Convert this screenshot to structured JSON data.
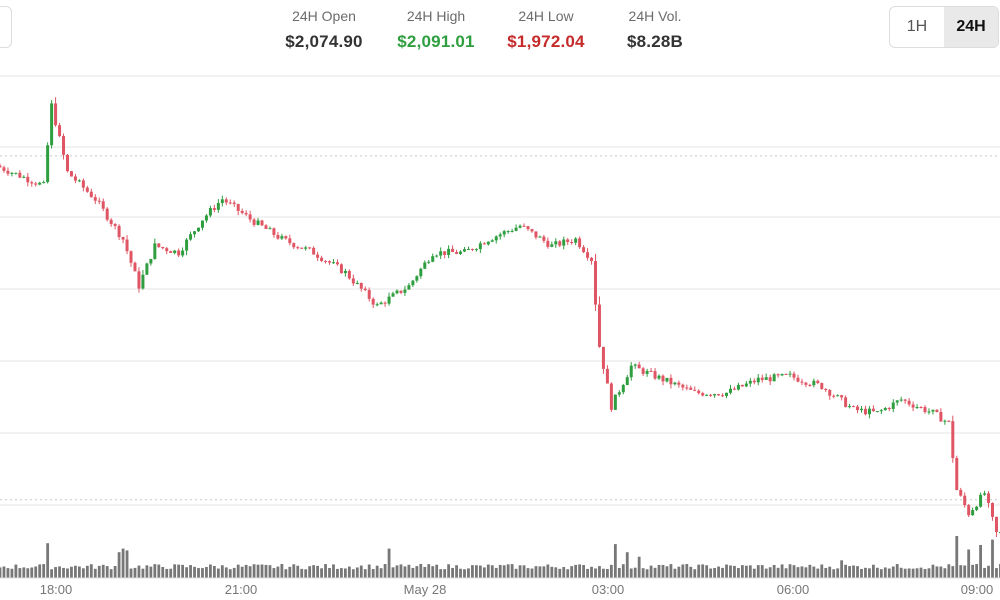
{
  "stats": [
    {
      "label": "24H Open",
      "value": "$2,074.90",
      "color": "#333333"
    },
    {
      "label": "24H High",
      "value": "$2,091.01",
      "color": "#2e9e3f"
    },
    {
      "label": "24H Low",
      "value": "$1,972.04",
      "color": "#c62b2b"
    },
    {
      "label": "24H Vol.",
      "value": "$8.28B",
      "color": "#333333"
    }
  ],
  "range_selector": {
    "options": [
      "1H",
      "24H"
    ],
    "selected": "24H"
  },
  "colors": {
    "up": "#2e9e3f",
    "down": "#e05564",
    "volume": "#777777",
    "grid": "#e4e4e4",
    "reference": "#c8c8c8"
  },
  "chart_data": {
    "type": "candlestick",
    "x_ticks": [
      "18:00",
      "21:00",
      "May 28",
      "03:00",
      "06:00",
      "09:00"
    ],
    "reference_prices": [
      2074.9,
      1972.04
    ],
    "y_range": [
      1960,
      2100
    ],
    "interval_minutes": 15,
    "anchors": [
      [
        0,
        2072
      ],
      [
        12,
        2066
      ],
      [
        14,
        2090
      ],
      [
        18,
        2070
      ],
      [
        25,
        2062
      ],
      [
        32,
        2050
      ],
      [
        36,
        2036
      ],
      [
        40,
        2048
      ],
      [
        46,
        2046
      ],
      [
        52,
        2056
      ],
      [
        57,
        2062
      ],
      [
        64,
        2056
      ],
      [
        72,
        2050
      ],
      [
        80,
        2046
      ],
      [
        88,
        2040
      ],
      [
        96,
        2030
      ],
      [
        104,
        2036
      ],
      [
        110,
        2046
      ],
      [
        118,
        2046
      ],
      [
        124,
        2050
      ],
      [
        132,
        2054
      ],
      [
        140,
        2048
      ],
      [
        146,
        2050
      ],
      [
        150,
        2044
      ],
      [
        152,
        2018
      ],
      [
        155,
        2000
      ],
      [
        160,
        2012
      ],
      [
        168,
        2008
      ],
      [
        176,
        2004
      ],
      [
        184,
        2004
      ],
      [
        192,
        2008
      ],
      [
        200,
        2009
      ],
      [
        208,
        2006
      ],
      [
        216,
        1999
      ],
      [
        222,
        1998
      ],
      [
        228,
        2002
      ],
      [
        236,
        1998
      ],
      [
        240,
        1995
      ],
      [
        242,
        1975
      ],
      [
        245,
        1968
      ],
      [
        249,
        1974
      ],
      [
        252,
        1962
      ]
    ],
    "volume_spikes": [
      [
        12,
        3.2
      ],
      [
        30,
        2.2
      ],
      [
        31,
        2.6
      ],
      [
        32,
        2.4
      ],
      [
        98,
        2.6
      ],
      [
        155,
        3.1
      ],
      [
        158,
        2.2
      ],
      [
        161,
        1.7
      ],
      [
        212,
        1.3
      ],
      [
        241,
        4.0
      ],
      [
        244,
        2.5
      ],
      [
        247,
        3.0
      ],
      [
        250,
        3.6
      ]
    ]
  }
}
